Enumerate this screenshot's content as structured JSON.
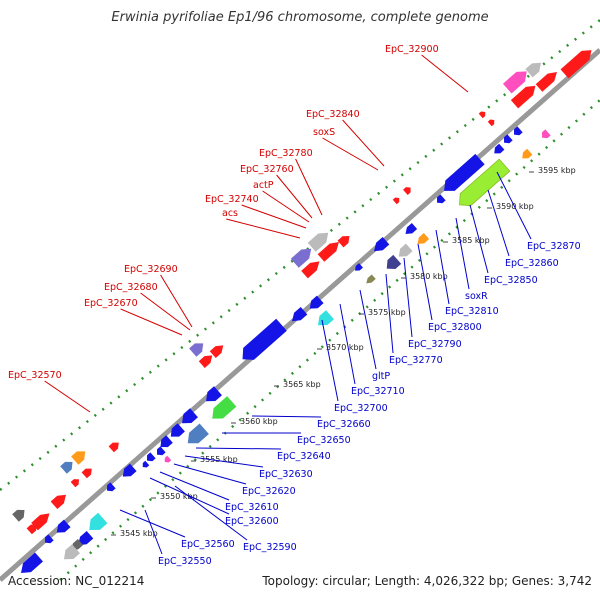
{
  "title": "Erwinia pyrifoliae Ep1/96 chromosome, complete genome",
  "footer": {
    "accession": "Accession: NC_012214",
    "summary": "Topology: circular; Length: 4,026,322 bp; Genes: 3,742"
  },
  "colors": {
    "forward_label": "#d40000",
    "reverse_label": "#0000cc",
    "backbone": "#999999",
    "dots": "#2f8f2f"
  },
  "ticks": [
    "3545 kbp",
    "3550 kbp",
    "3555 kbp",
    "3560 kbp",
    "3565 kbp",
    "3570 kbp",
    "3575 kbp",
    "3580 kbp",
    "3585 kbp",
    "3590 kbp",
    "3595 kbp"
  ],
  "forward_genes": [
    "EpC_32900",
    "EpC_32840",
    "soxS",
    "EpC_32780",
    "EpC_32760",
    "actP",
    "EpC_32740",
    "acs",
    "EpC_32690",
    "EpC_32680",
    "EpC_32670",
    "EpC_32570"
  ],
  "reverse_genes": [
    "EpC_32870",
    "EpC_32860",
    "EpC_32850",
    "soxR",
    "EpC_32810",
    "EpC_32800",
    "EpC_32790",
    "EpC_32770",
    "gltP",
    "EpC_32710",
    "EpC_32700",
    "EpC_32660",
    "EpC_32650",
    "EpC_32640",
    "EpC_32630",
    "EpC_32620",
    "EpC_32610",
    "EpC_32600",
    "EpC_32590",
    "EpC_32560",
    "EpC_32550"
  ]
}
